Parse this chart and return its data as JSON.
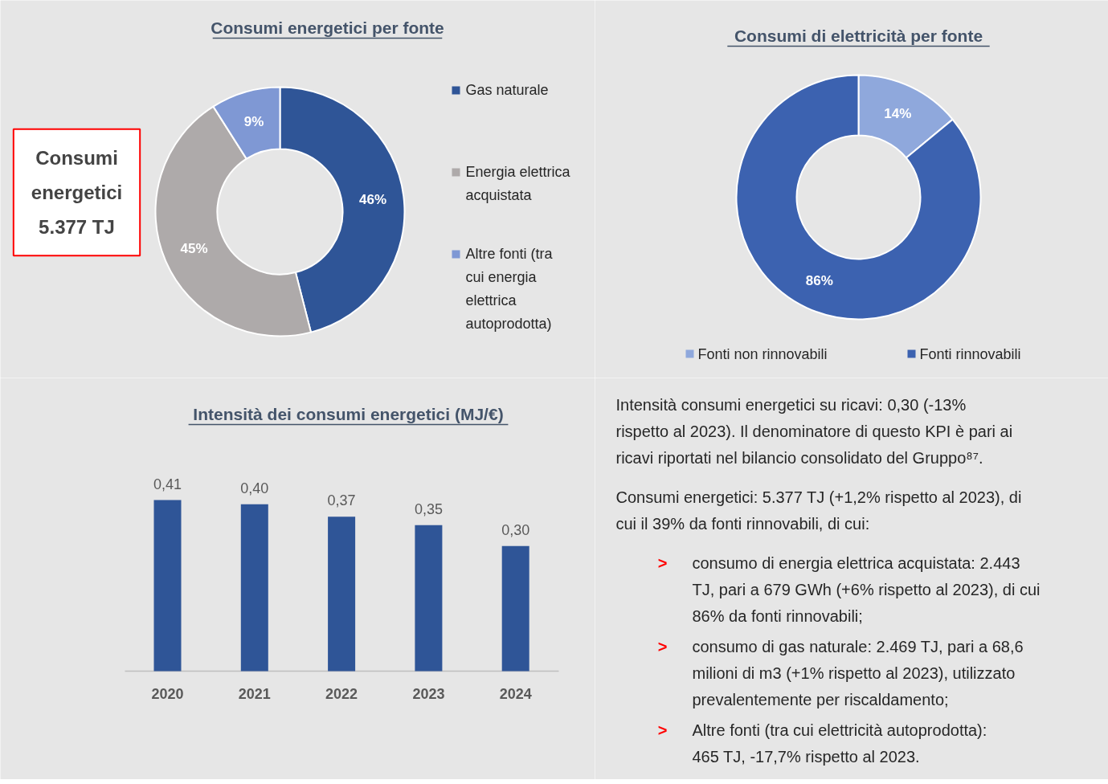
{
  "chart_data": [
    {
      "type": "donut",
      "title": "Consumi energetici per fonte",
      "categories": [
        "Gas naturale",
        "Energia elettrica acquistata",
        "Altre fonti (tra cui energia elettrica autoprodotta)"
      ],
      "values": [
        46,
        45,
        9
      ],
      "colors": [
        "#2f5597",
        "#aeaaaa",
        "#7f98d4"
      ],
      "value_labels": [
        "46%",
        "45%",
        "9%"
      ],
      "legend": "right",
      "annotations": [
        "Consumi energetici 5.377 TJ"
      ]
    },
    {
      "type": "donut",
      "title": "Consumi di elettricità per fonte",
      "categories": [
        "Fonti non rinnovabili",
        "Fonti rinnovabili"
      ],
      "values": [
        14,
        86
      ],
      "colors": [
        "#8fa8dc",
        "#3c62b0"
      ],
      "value_labels": [
        "14%",
        "86%"
      ],
      "legend": "bottom"
    },
    {
      "type": "bar",
      "title": "Intensità dei consumi energetici (MJ/€)",
      "categories": [
        "2020",
        "2021",
        "2022",
        "2023",
        "2024"
      ],
      "values": [
        0.41,
        0.4,
        0.37,
        0.35,
        0.3
      ],
      "color": "#2f5597",
      "value_labels": [
        "0,41",
        "0,40",
        "0,37",
        "0,35",
        "0,30"
      ]
    },
    {
      "type": "other",
      "annotations": [
        "Intensità consumi energetici su ricavi: 0,30 (-13% rispetto al 2023). Il denominatore di questo KPI è pari ai ricavi riportati nel bilancio consolidato del Gruppo⁸⁷.",
        "Consumi energetici: 5.377 TJ (+1,2% rispetto al 2023), di cui il 39% da fonti rinnovabili, di cui:",
        "> consumo di energia elettrica acquistata: 2.443 TJ, pari a 679 GWh (+6% rispetto al 2023), di cui 86% da fonti rinnovabili;",
        "> consumo di gas naturale: 2.469 TJ, pari a 68,6 milioni di m3 (+1% rispetto al 2023), utilizzato prevalentemente per riscaldamento;",
        "> Altre fonti (tra cui elettricità autoprodotta): 465 TJ, -17,7% rispetto al 2023."
      ]
    }
  ]
}
